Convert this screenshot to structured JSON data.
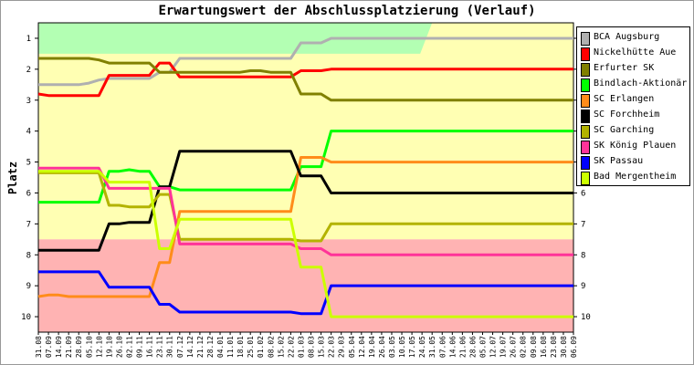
{
  "chart_data": {
    "type": "line",
    "title": "Erwartungswert der Abschlussplatzierung (Verlauf)",
    "ylabel": "Platz",
    "ylim": [
      0.5,
      10.5
    ],
    "y_inverted": true,
    "y_ticks": [
      1,
      2,
      3,
      4,
      5,
      6,
      7,
      8,
      9,
      10
    ],
    "legend_position": "right",
    "grid": false,
    "categories": [
      "31.08",
      "07.09",
      "14.09",
      "21.09",
      "28.09",
      "05.10",
      "12.10",
      "19.10",
      "26.10",
      "02.11",
      "09.11",
      "16.11",
      "23.11",
      "30.11",
      "07.12",
      "14.12",
      "21.12",
      "28.12",
      "04.01",
      "11.01",
      "18.01",
      "25.01",
      "01.02",
      "08.02",
      "15.02",
      "22.02",
      "01.03",
      "08.03",
      "15.03",
      "22.03",
      "29.03",
      "05.04",
      "12.04",
      "19.04",
      "26.04",
      "03.05",
      "10.05",
      "17.05",
      "24.05",
      "31.05",
      "07.06",
      "14.06",
      "21.06",
      "28.06",
      "05.07",
      "12.07",
      "19.07",
      "26.07",
      "02.08",
      "09.08",
      "16.08",
      "23.08",
      "30.08",
      "06.09"
    ],
    "zones": [
      {
        "name": "promotion",
        "from": 0.5,
        "to": 1.5,
        "color": "#b3ffb3",
        "until_category": "24.05"
      },
      {
        "name": "middle",
        "from": 0.5,
        "to": 7.5,
        "color": "#ffffb3"
      },
      {
        "name": "relegation",
        "from": 7.5,
        "to": 10.5,
        "color": "#ffb3b3"
      }
    ],
    "series": [
      {
        "name": "BCA Augsburg",
        "color": "#b0b0b0",
        "values": [
          2.5,
          2.5,
          2.5,
          2.5,
          2.5,
          2.45,
          2.35,
          2.3,
          2.3,
          2.3,
          2.3,
          2.3,
          2.1,
          2.1,
          1.65,
          1.65,
          1.65,
          1.65,
          1.65,
          1.65,
          1.65,
          1.65,
          1.65,
          1.65,
          1.65,
          1.65,
          1.15,
          1.15,
          1.15,
          1.0,
          1.0,
          1.0,
          1.0,
          1.0,
          1.0,
          1.0,
          1.0,
          1.0,
          1.0,
          1.0,
          1.0,
          1.0,
          1.0,
          1.0,
          1.0,
          1.0,
          1.0,
          1.0,
          1.0,
          1.0,
          1.0,
          1.0,
          1.0,
          1.0
        ]
      },
      {
        "name": "Nickelhütte Aue",
        "color": "#ff0000",
        "values": [
          2.8,
          2.85,
          2.85,
          2.85,
          2.85,
          2.85,
          2.85,
          2.2,
          2.2,
          2.2,
          2.2,
          2.2,
          1.8,
          1.8,
          2.25,
          2.25,
          2.25,
          2.25,
          2.25,
          2.25,
          2.25,
          2.25,
          2.25,
          2.25,
          2.25,
          2.25,
          2.05,
          2.05,
          2.05,
          2.0,
          2.0,
          2.0,
          2.0,
          2.0,
          2.0,
          2.0,
          2.0,
          2.0,
          2.0,
          2.0,
          2.0,
          2.0,
          2.0,
          2.0,
          2.0,
          2.0,
          2.0,
          2.0,
          2.0,
          2.0,
          2.0,
          2.0,
          2.0,
          2.0
        ]
      },
      {
        "name": "Erfurter SK",
        "color": "#808000",
        "values": [
          1.65,
          1.65,
          1.65,
          1.65,
          1.65,
          1.65,
          1.7,
          1.8,
          1.8,
          1.8,
          1.8,
          1.8,
          2.1,
          2.1,
          2.1,
          2.1,
          2.1,
          2.1,
          2.1,
          2.1,
          2.1,
          2.05,
          2.05,
          2.1,
          2.1,
          2.1,
          2.8,
          2.8,
          2.8,
          3.0,
          3.0,
          3.0,
          3.0,
          3.0,
          3.0,
          3.0,
          3.0,
          3.0,
          3.0,
          3.0,
          3.0,
          3.0,
          3.0,
          3.0,
          3.0,
          3.0,
          3.0,
          3.0,
          3.0,
          3.0,
          3.0,
          3.0,
          3.0,
          3.0
        ]
      },
      {
        "name": "Bindlach-Aktionär",
        "color": "#00ff00",
        "values": [
          6.3,
          6.3,
          6.3,
          6.3,
          6.3,
          6.3,
          6.3,
          5.3,
          5.3,
          5.25,
          5.3,
          5.3,
          5.8,
          5.8,
          5.9,
          5.9,
          5.9,
          5.9,
          5.9,
          5.9,
          5.9,
          5.9,
          5.9,
          5.9,
          5.9,
          5.9,
          5.15,
          5.15,
          5.15,
          4.0,
          4.0,
          4.0,
          4.0,
          4.0,
          4.0,
          4.0,
          4.0,
          4.0,
          4.0,
          4.0,
          4.0,
          4.0,
          4.0,
          4.0,
          4.0,
          4.0,
          4.0,
          4.0,
          4.0,
          4.0,
          4.0,
          4.0,
          4.0,
          4.0
        ]
      },
      {
        "name": "SC Erlangen",
        "color": "#ff8c1a",
        "values": [
          9.35,
          9.3,
          9.3,
          9.35,
          9.35,
          9.35,
          9.35,
          9.35,
          9.35,
          9.35,
          9.35,
          9.35,
          8.25,
          8.25,
          6.6,
          6.6,
          6.6,
          6.6,
          6.6,
          6.6,
          6.6,
          6.6,
          6.6,
          6.6,
          6.6,
          6.6,
          4.85,
          4.85,
          4.85,
          5.0,
          5.0,
          5.0,
          5.0,
          5.0,
          5.0,
          5.0,
          5.0,
          5.0,
          5.0,
          5.0,
          5.0,
          5.0,
          5.0,
          5.0,
          5.0,
          5.0,
          5.0,
          5.0,
          5.0,
          5.0,
          5.0,
          5.0,
          5.0,
          5.0
        ]
      },
      {
        "name": "SC Forchheim",
        "color": "#000000",
        "values": [
          7.85,
          7.85,
          7.85,
          7.85,
          7.85,
          7.85,
          7.85,
          7.0,
          7.0,
          6.95,
          6.95,
          6.95,
          5.8,
          5.8,
          4.65,
          4.65,
          4.65,
          4.65,
          4.65,
          4.65,
          4.65,
          4.65,
          4.65,
          4.65,
          4.65,
          4.65,
          5.45,
          5.45,
          5.45,
          6.0,
          6.0,
          6.0,
          6.0,
          6.0,
          6.0,
          6.0,
          6.0,
          6.0,
          6.0,
          6.0,
          6.0,
          6.0,
          6.0,
          6.0,
          6.0,
          6.0,
          6.0,
          6.0,
          6.0,
          6.0,
          6.0,
          6.0,
          6.0,
          6.0
        ]
      },
      {
        "name": "SC Garching",
        "color": "#b3b300",
        "values": [
          5.35,
          5.35,
          5.35,
          5.35,
          5.35,
          5.35,
          5.35,
          6.4,
          6.4,
          6.45,
          6.45,
          6.45,
          6.05,
          6.05,
          7.5,
          7.5,
          7.5,
          7.5,
          7.5,
          7.5,
          7.5,
          7.5,
          7.5,
          7.5,
          7.5,
          7.5,
          7.55,
          7.55,
          7.55,
          7.0,
          7.0,
          7.0,
          7.0,
          7.0,
          7.0,
          7.0,
          7.0,
          7.0,
          7.0,
          7.0,
          7.0,
          7.0,
          7.0,
          7.0,
          7.0,
          7.0,
          7.0,
          7.0,
          7.0,
          7.0,
          7.0,
          7.0,
          7.0,
          7.0
        ]
      },
      {
        "name": "SK König Plauen",
        "color": "#ff3399",
        "values": [
          5.2,
          5.2,
          5.2,
          5.2,
          5.2,
          5.2,
          5.2,
          5.85,
          5.85,
          5.85,
          5.85,
          5.85,
          5.85,
          5.85,
          7.65,
          7.65,
          7.65,
          7.65,
          7.65,
          7.65,
          7.65,
          7.65,
          7.65,
          7.65,
          7.65,
          7.65,
          7.8,
          7.8,
          7.8,
          8.0,
          8.0,
          8.0,
          8.0,
          8.0,
          8.0,
          8.0,
          8.0,
          8.0,
          8.0,
          8.0,
          8.0,
          8.0,
          8.0,
          8.0,
          8.0,
          8.0,
          8.0,
          8.0,
          8.0,
          8.0,
          8.0,
          8.0,
          8.0,
          8.0
        ]
      },
      {
        "name": "SK Passau",
        "color": "#0000ff",
        "values": [
          8.55,
          8.55,
          8.55,
          8.55,
          8.55,
          8.55,
          8.55,
          9.05,
          9.05,
          9.05,
          9.05,
          9.05,
          9.6,
          9.6,
          9.85,
          9.85,
          9.85,
          9.85,
          9.85,
          9.85,
          9.85,
          9.85,
          9.85,
          9.85,
          9.85,
          9.85,
          9.9,
          9.9,
          9.9,
          9.0,
          9.0,
          9.0,
          9.0,
          9.0,
          9.0,
          9.0,
          9.0,
          9.0,
          9.0,
          9.0,
          9.0,
          9.0,
          9.0,
          9.0,
          9.0,
          9.0,
          9.0,
          9.0,
          9.0,
          9.0,
          9.0,
          9.0,
          9.0,
          9.0
        ]
      },
      {
        "name": "Bad Mergentheim",
        "color": "#ccff00",
        "values": [
          5.3,
          5.3,
          5.3,
          5.3,
          5.3,
          5.3,
          5.3,
          5.65,
          5.65,
          5.65,
          5.65,
          5.65,
          7.8,
          7.8,
          6.85,
          6.85,
          6.85,
          6.85,
          6.85,
          6.85,
          6.85,
          6.85,
          6.85,
          6.85,
          6.85,
          6.85,
          8.4,
          8.4,
          8.4,
          10.0,
          10.0,
          10.0,
          10.0,
          10.0,
          10.0,
          10.0,
          10.0,
          10.0,
          10.0,
          10.0,
          10.0,
          10.0,
          10.0,
          10.0,
          10.0,
          10.0,
          10.0,
          10.0,
          10.0,
          10.0,
          10.0,
          10.0,
          10.0,
          10.0
        ]
      }
    ]
  }
}
